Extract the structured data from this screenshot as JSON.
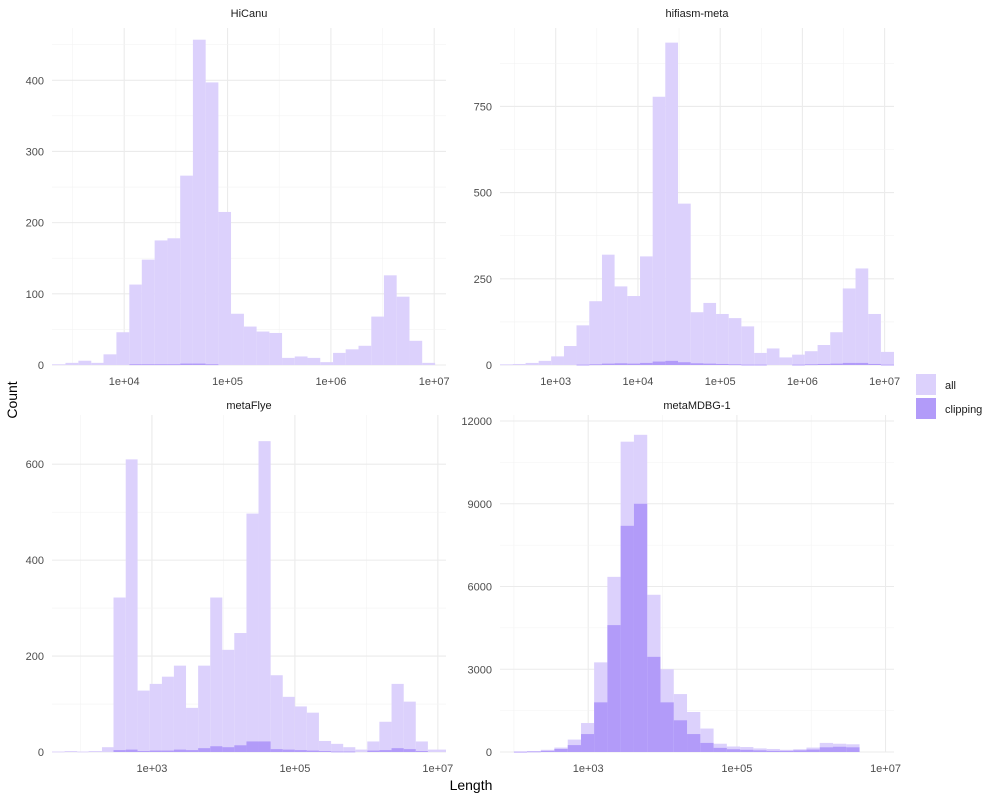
{
  "figure": {
    "xlabel": "Length",
    "ylabel": "Count",
    "legend": {
      "position": "right",
      "items": [
        {
          "label": "all",
          "color": "#dcd1fc"
        },
        {
          "label": "clipping",
          "color": "#b29bf9"
        }
      ]
    }
  },
  "chart_data": [
    {
      "type": "bar",
      "title": "HiCanu",
      "x_scale": "log10",
      "xlim": [
        2000,
        13000000
      ],
      "ylim": [
        0,
        465
      ],
      "x_ticks": [
        "1e+04",
        "1e+05",
        "1e+06",
        "1e+07"
      ],
      "y_ticks": [
        "0",
        "100",
        "200",
        "300",
        "400"
      ],
      "bin_start": [
        2000,
        2700,
        3600,
        4800,
        6300,
        8400,
        11200,
        14800,
        19700,
        26200,
        34800,
        46200,
        61400,
        81500,
        108000,
        144000,
        191000,
        254000,
        337000,
        447000,
        594000,
        789000,
        1050000,
        1390000,
        1850000,
        2460000,
        3260000,
        4330000,
        5760000,
        7650000,
        10200000
      ],
      "bin_end": [
        2700,
        3600,
        4800,
        6300,
        8400,
        11200,
        14800,
        19700,
        26200,
        34800,
        46200,
        61400,
        81500,
        108000,
        144000,
        191000,
        254000,
        337000,
        447000,
        594000,
        789000,
        1050000,
        1390000,
        1850000,
        2460000,
        3260000,
        4330000,
        5760000,
        7650000,
        10200000,
        13000000
      ],
      "grid_x": [
        3160,
        10000,
        31600,
        100000,
        316000,
        1000000,
        3160000,
        10000000
      ],
      "series": [
        {
          "name": "all",
          "values": [
            1,
            3,
            6,
            3,
            15,
            46,
            113,
            148,
            175,
            178,
            266,
            457,
            397,
            215,
            72,
            54,
            47,
            45,
            10,
            12,
            10,
            4,
            17,
            22,
            27,
            68,
            126,
            96,
            34,
            3,
            0
          ]
        },
        {
          "name": "clipping",
          "values": [
            0,
            0,
            0,
            0,
            0,
            0,
            1,
            1,
            1,
            1,
            2,
            2,
            1,
            0,
            0,
            0,
            0,
            0,
            0,
            0,
            0,
            0,
            0,
            0,
            0,
            0,
            0,
            0,
            0,
            0,
            0
          ]
        }
      ]
    },
    {
      "type": "bar",
      "title": "hifiasm-meta",
      "x_scale": "log10",
      "xlim": [
        210,
        13000000
      ],
      "ylim": [
        0,
        960
      ],
      "x_ticks": [
        "1e+03",
        "1e+04",
        "1e+05",
        "1e+06",
        "1e+07"
      ],
      "y_ticks": [
        "0",
        "250",
        "500",
        "750"
      ],
      "bin_start": [
        210,
        300,
        430,
        620,
        880,
        1260,
        1790,
        2560,
        3650,
        5200,
        7420,
        10600,
        15100,
        21500,
        30700,
        43800,
        62500,
        89100,
        127000,
        181000,
        259000,
        369000,
        526000,
        750000,
        1070000,
        1530000,
        2180000,
        3100000,
        4430000,
        6320000,
        9010000
      ],
      "bin_end": [
        300,
        430,
        620,
        880,
        1260,
        1790,
        2560,
        3650,
        5200,
        7420,
        10600,
        15100,
        21500,
        30700,
        43800,
        62500,
        89100,
        127000,
        181000,
        259000,
        369000,
        526000,
        750000,
        1070000,
        1530000,
        2180000,
        3100000,
        4430000,
        6320000,
        9010000,
        13000000
      ],
      "grid_x": [
        316,
        1000,
        3160,
        10000,
        31600,
        100000,
        316000,
        1000000,
        3160000,
        10000000
      ],
      "series": [
        {
          "name": "all",
          "values": [
            2,
            3,
            6,
            12,
            25,
            55,
            115,
            185,
            320,
            228,
            200,
            315,
            778,
            935,
            468,
            153,
            180,
            148,
            136,
            112,
            35,
            48,
            22,
            30,
            40,
            58,
            95,
            222,
            280,
            148,
            38
          ]
        },
        {
          "name": "clipping",
          "values": [
            0,
            0,
            0,
            0,
            0,
            0,
            1,
            2,
            4,
            5,
            4,
            6,
            10,
            12,
            8,
            5,
            4,
            3,
            2,
            1,
            1,
            0,
            0,
            1,
            2,
            3,
            4,
            6,
            6,
            3,
            1
          ]
        }
      ]
    },
    {
      "type": "bar",
      "title": "metaFlye",
      "x_scale": "log10",
      "xlim": [
        40,
        13000000
      ],
      "ylim": [
        0,
        690
      ],
      "x_ticks": [
        "1e+03",
        "1e+05",
        "1e+07"
      ],
      "y_ticks": [
        "0",
        "200",
        "400",
        "600"
      ],
      "bin_start": [
        40,
        60,
        90,
        130,
        200,
        290,
        430,
        630,
        930,
        1380,
        2030,
        3000,
        4430,
        6540,
        9650,
        14200,
        21000,
        31000,
        45800,
        67600,
        99700,
        147000,
        217000,
        321000,
        474000,
        700000,
        1030000,
        1520000,
        2250000,
        3330000,
        4910000,
        7250000
      ],
      "bin_end": [
        60,
        90,
        130,
        200,
        290,
        430,
        630,
        930,
        1380,
        2030,
        3000,
        4430,
        6540,
        9650,
        14200,
        21000,
        31000,
        45800,
        67600,
        99700,
        147000,
        217000,
        321000,
        474000,
        700000,
        1030000,
        1520000,
        2250000,
        3330000,
        4910000,
        7250000,
        13000000
      ],
      "grid_x": [
        100,
        1000,
        10000,
        100000,
        1000000,
        10000000
      ],
      "series": [
        {
          "name": "all",
          "values": [
            1,
            2,
            1,
            2,
            10,
            322,
            610,
            128,
            142,
            157,
            180,
            92,
            180,
            322,
            213,
            248,
            497,
            648,
            160,
            115,
            95,
            82,
            23,
            17,
            10,
            5,
            22,
            63,
            142,
            105,
            22,
            5
          ]
        },
        {
          "name": "clipping",
          "values": [
            0,
            0,
            0,
            0,
            0,
            4,
            5,
            2,
            3,
            3,
            5,
            4,
            8,
            12,
            10,
            14,
            22,
            22,
            6,
            5,
            4,
            3,
            2,
            1,
            1,
            0,
            3,
            4,
            8,
            6,
            2,
            0
          ]
        }
      ]
    },
    {
      "type": "bar",
      "title": "metaMDBG-1",
      "x_scale": "log10",
      "xlim": [
        65,
        13000000
      ],
      "ylim": [
        0,
        12000
      ],
      "x_ticks": [
        "1e+03",
        "1e+05",
        "1e+07"
      ],
      "y_ticks": [
        "0",
        "3000",
        "6000",
        "9000",
        "12000"
      ],
      "bin_start": [
        100,
        150,
        230,
        350,
        530,
        800,
        1200,
        1810,
        2730,
        4120,
        6220,
        9380,
        14150,
        21350,
        32200,
        48600,
        73300,
        110600,
        166800,
        251600,
        379500,
        572500,
        863600,
        1302800,
        1965300,
        2964700,
        4472200
      ],
      "bin_end": [
        150,
        230,
        350,
        530,
        800,
        1200,
        1810,
        2730,
        4120,
        6220,
        9380,
        14150,
        21350,
        32200,
        48600,
        73300,
        110600,
        166800,
        251600,
        379500,
        572500,
        863600,
        1302800,
        1965300,
        2964700,
        4472200,
        6746200
      ],
      "grid_x": [
        100,
        1000,
        10000,
        100000,
        1000000,
        10000000
      ],
      "series": [
        {
          "name": "all",
          "values": [
            20,
            30,
            80,
            160,
            450,
            1050,
            3250,
            6350,
            11250,
            11500,
            5700,
            3000,
            2100,
            1450,
            850,
            300,
            200,
            180,
            130,
            110,
            80,
            100,
            160,
            330,
            300,
            280,
            0
          ]
        },
        {
          "name": "clipping",
          "values": [
            10,
            20,
            40,
            110,
            250,
            650,
            1800,
            4600,
            8200,
            9000,
            3450,
            1800,
            1150,
            650,
            330,
            150,
            100,
            80,
            60,
            40,
            40,
            60,
            90,
            170,
            190,
            170,
            0
          ]
        }
      ]
    }
  ]
}
